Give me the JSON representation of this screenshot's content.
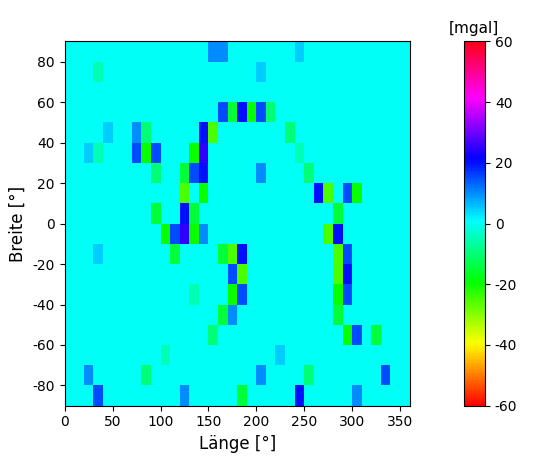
{
  "chart_data": {
    "type": "heatmap",
    "x_label": "Länge [°]",
    "y_label": "Breite [°]",
    "colorbar_label": "[mgal]",
    "x": [
      5,
      15,
      25,
      35,
      45,
      55,
      65,
      75,
      85,
      95,
      105,
      115,
      125,
      135,
      145,
      155,
      165,
      175,
      185,
      195,
      205,
      215,
      225,
      235,
      245,
      255,
      265,
      275,
      285,
      295,
      305,
      315,
      325,
      335,
      345,
      355
    ],
    "y": [
      -85,
      -75,
      -65,
      -55,
      -45,
      -35,
      -25,
      -15,
      -5,
      5,
      15,
      25,
      35,
      45,
      55,
      65,
      75,
      85
    ],
    "cells": [
      [
        0,
        0,
        0,
        15,
        0,
        0,
        0,
        0,
        0,
        0,
        0,
        0,
        10,
        0,
        0,
        0,
        0,
        0,
        -15,
        0,
        0,
        0,
        0,
        0,
        20,
        0,
        0,
        0,
        0,
        0,
        10,
        0,
        0,
        0,
        0,
        0
      ],
      [
        0,
        0,
        10,
        0,
        0,
        0,
        0,
        0,
        -10,
        0,
        0,
        0,
        0,
        0,
        0,
        0,
        0,
        0,
        0,
        0,
        10,
        0,
        0,
        0,
        0,
        -10,
        0,
        0,
        0,
        0,
        0,
        0,
        0,
        15,
        0,
        0
      ],
      [
        0,
        0,
        0,
        0,
        0,
        0,
        0,
        0,
        0,
        0,
        -5,
        0,
        0,
        0,
        0,
        0,
        0,
        0,
        0,
        0,
        0,
        0,
        5,
        0,
        0,
        0,
        0,
        0,
        0,
        0,
        0,
        0,
        0,
        0,
        0,
        0
      ],
      [
        0,
        0,
        0,
        0,
        0,
        0,
        0,
        0,
        0,
        0,
        0,
        0,
        0,
        0,
        0,
        -10,
        0,
        0,
        0,
        0,
        0,
        0,
        0,
        0,
        0,
        0,
        0,
        0,
        0,
        -20,
        15,
        0,
        -15,
        0,
        0,
        0
      ],
      [
        0,
        0,
        0,
        0,
        0,
        0,
        0,
        0,
        0,
        0,
        0,
        0,
        0,
        0,
        0,
        0,
        -15,
        10,
        0,
        0,
        0,
        0,
        0,
        0,
        0,
        0,
        0,
        0,
        -15,
        0,
        0,
        0,
        0,
        0,
        0,
        0
      ],
      [
        0,
        0,
        0,
        0,
        0,
        0,
        0,
        0,
        0,
        0,
        0,
        0,
        0,
        -5,
        0,
        0,
        0,
        -20,
        15,
        0,
        0,
        0,
        0,
        0,
        0,
        0,
        0,
        0,
        -20,
        15,
        0,
        0,
        0,
        0,
        0,
        0
      ],
      [
        0,
        0,
        0,
        0,
        0,
        0,
        0,
        0,
        0,
        0,
        0,
        0,
        0,
        0,
        0,
        0,
        0,
        15,
        -25,
        0,
        0,
        0,
        0,
        0,
        0,
        0,
        0,
        0,
        -25,
        20,
        0,
        0,
        0,
        0,
        0,
        0
      ],
      [
        0,
        0,
        0,
        5,
        0,
        0,
        0,
        0,
        0,
        0,
        0,
        -15,
        0,
        0,
        0,
        0,
        -15,
        -25,
        20,
        0,
        0,
        0,
        0,
        0,
        0,
        0,
        0,
        0,
        -25,
        15,
        0,
        0,
        0,
        0,
        0,
        0
      ],
      [
        0,
        0,
        0,
        0,
        0,
        0,
        0,
        0,
        0,
        0,
        -20,
        15,
        25,
        -20,
        10,
        0,
        0,
        0,
        0,
        0,
        0,
        0,
        0,
        0,
        0,
        0,
        0,
        -25,
        20,
        0,
        0,
        0,
        0,
        0,
        0,
        0
      ],
      [
        0,
        0,
        0,
        0,
        0,
        0,
        0,
        0,
        0,
        -15,
        0,
        0,
        20,
        -15,
        0,
        0,
        0,
        0,
        0,
        0,
        0,
        0,
        0,
        0,
        0,
        0,
        0,
        0,
        -15,
        0,
        0,
        0,
        0,
        0,
        0,
        0
      ],
      [
        0,
        0,
        0,
        0,
        0,
        0,
        0,
        0,
        0,
        0,
        0,
        0,
        -25,
        0,
        -20,
        0,
        0,
        0,
        0,
        0,
        0,
        0,
        0,
        0,
        0,
        0,
        20,
        -25,
        0,
        15,
        -20,
        0,
        0,
        0,
        0,
        0
      ],
      [
        0,
        0,
        0,
        0,
        0,
        0,
        0,
        0,
        0,
        -10,
        0,
        0,
        -15,
        15,
        20,
        0,
        0,
        0,
        0,
        0,
        10,
        0,
        0,
        0,
        0,
        -10,
        0,
        0,
        0,
        0,
        0,
        0,
        0,
        0,
        0,
        0
      ],
      [
        0,
        0,
        5,
        -5,
        0,
        0,
        0,
        15,
        -20,
        15,
        0,
        0,
        0,
        -20,
        25,
        0,
        0,
        0,
        0,
        0,
        0,
        0,
        0,
        0,
        -5,
        0,
        0,
        0,
        0,
        0,
        0,
        0,
        0,
        0,
        0,
        0
      ],
      [
        0,
        0,
        0,
        0,
        5,
        0,
        0,
        10,
        -10,
        0,
        0,
        0,
        0,
        0,
        20,
        -25,
        0,
        0,
        0,
        0,
        0,
        0,
        0,
        -10,
        0,
        0,
        0,
        0,
        0,
        0,
        0,
        0,
        0,
        0,
        0,
        0
      ],
      [
        0,
        0,
        0,
        0,
        0,
        0,
        0,
        0,
        0,
        0,
        0,
        0,
        0,
        0,
        0,
        0,
        15,
        -15,
        20,
        -20,
        15,
        -10,
        0,
        0,
        0,
        0,
        0,
        0,
        0,
        0,
        0,
        0,
        0,
        0,
        0,
        0
      ],
      [
        0,
        0,
        0,
        0,
        0,
        0,
        0,
        0,
        0,
        0,
        0,
        0,
        0,
        0,
        0,
        0,
        0,
        0,
        0,
        0,
        0,
        0,
        0,
        0,
        0,
        0,
        0,
        0,
        0,
        0,
        0,
        0,
        0,
        0,
        0,
        0
      ],
      [
        0,
        0,
        0,
        -5,
        0,
        0,
        0,
        0,
        0,
        0,
        0,
        0,
        0,
        0,
        0,
        0,
        0,
        0,
        0,
        0,
        5,
        0,
        0,
        0,
        0,
        0,
        0,
        0,
        0,
        0,
        0,
        0,
        0,
        0,
        0,
        0
      ],
      [
        0,
        0,
        0,
        0,
        0,
        0,
        0,
        0,
        0,
        0,
        0,
        0,
        0,
        0,
        0,
        10,
        10,
        0,
        0,
        0,
        0,
        0,
        0,
        0,
        5,
        0,
        0,
        0,
        0,
        0,
        0,
        0,
        0,
        0,
        0,
        0
      ]
    ],
    "xlim": [
      0,
      360
    ],
    "xticks": [
      0,
      50,
      100,
      150,
      200,
      250,
      300,
      350
    ],
    "ylim": [
      -90,
      90
    ],
    "yticks": [
      -80,
      -60,
      -40,
      -20,
      0,
      20,
      40,
      60,
      80
    ],
    "colorbar_range": [
      -60,
      60
    ],
    "colorbar_ticks": [
      -60,
      -40,
      -20,
      0,
      20,
      40,
      60
    ]
  }
}
